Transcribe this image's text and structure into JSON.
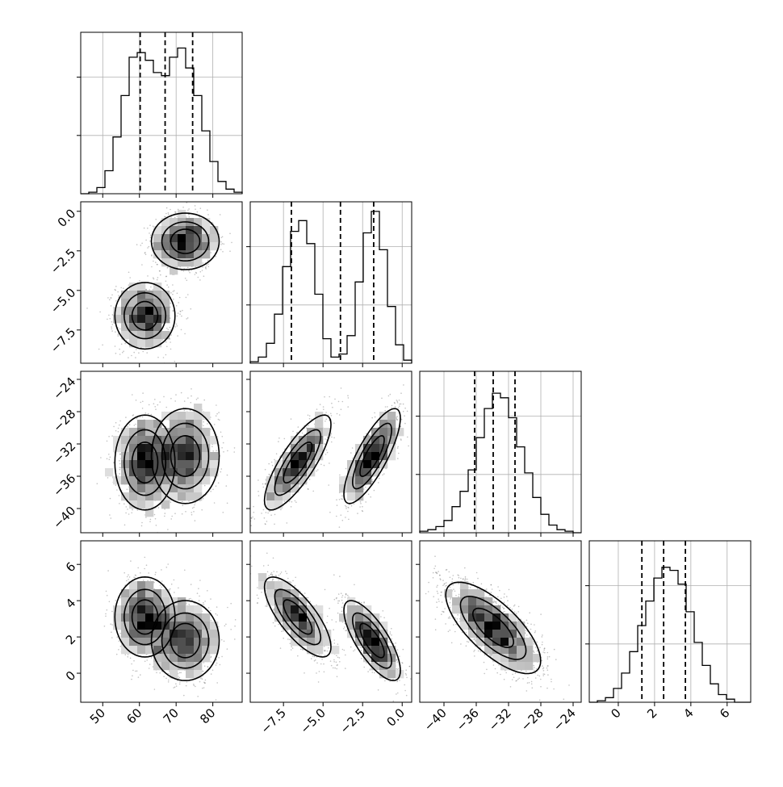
{
  "chart_data": {
    "type": "corner",
    "grid": true,
    "variables": [
      {
        "range": [
          44,
          88
        ],
        "ticks": [
          50,
          60,
          70,
          80
        ],
        "tick_labels": [
          "50",
          "60",
          "70",
          "80"
        ],
        "quantiles": [
          60.2,
          67.0,
          74.5
        ]
      },
      {
        "range": [
          -9.6,
          0.6
        ],
        "ticks": [
          -7.5,
          -5.0,
          -2.5,
          0.0
        ],
        "tick_labels": [
          "−7.5",
          "−5.0",
          "−2.5",
          "0.0"
        ],
        "quantiles": [
          -7.0,
          -3.9,
          -1.8
        ]
      },
      {
        "range": [
          -43,
          -23
        ],
        "ticks": [
          -40,
          -36,
          -32,
          -28,
          -24
        ],
        "tick_labels": [
          "−40",
          "−36",
          "−32",
          "−28",
          "−24"
        ],
        "quantiles": [
          -36.2,
          -33.9,
          -31.2
        ]
      },
      {
        "range": [
          -1.6,
          7.3
        ],
        "ticks": [
          0,
          2,
          4,
          6
        ],
        "tick_labels": [
          "0",
          "2",
          "4",
          "6"
        ],
        "quantiles": [
          1.3,
          2.5,
          3.7
        ]
      }
    ],
    "histograms": [
      {
        "counts": [
          0,
          0.01,
          0.04,
          0.15,
          0.37,
          0.64,
          0.89,
          0.92,
          0.87,
          0.79,
          0.77,
          0.89,
          0.95,
          0.82,
          0.64,
          0.41,
          0.21,
          0.08,
          0.03,
          0.01
        ]
      },
      {
        "counts": [
          0.01,
          0.04,
          0.13,
          0.32,
          0.63,
          0.86,
          0.93,
          0.78,
          0.45,
          0.16,
          0.04,
          0.06,
          0.18,
          0.53,
          0.85,
          0.99,
          0.74,
          0.37,
          0.12,
          0.02
        ]
      },
      {
        "counts": [
          0.01,
          0.02,
          0.04,
          0.08,
          0.17,
          0.27,
          0.41,
          0.62,
          0.81,
          0.91,
          0.88,
          0.75,
          0.56,
          0.39,
          0.23,
          0.12,
          0.05,
          0.02,
          0.01,
          0
        ]
      },
      {
        "counts": [
          0,
          0.01,
          0.03,
          0.09,
          0.19,
          0.33,
          0.5,
          0.66,
          0.81,
          0.88,
          0.86,
          0.77,
          0.59,
          0.39,
          0.24,
          0.12,
          0.05,
          0.02,
          0,
          0
        ]
      }
    ],
    "pairs": [
      {
        "x_var": 0,
        "y_var": 1,
        "components": [
          {
            "mean": [
              72.5,
              -1.9
            ],
            "sd": [
              4.4,
              0.85
            ],
            "rho": 0
          },
          {
            "mean": [
              61.5,
              -6.6
            ],
            "sd": [
              3.9,
              1.0
            ],
            "rho": 0
          }
        ]
      },
      {
        "x_var": 0,
        "y_var": 2,
        "components": [
          {
            "mean": [
              61.5,
              -34.3
            ],
            "sd": [
              3.9,
              2.8
            ],
            "rho": 0
          },
          {
            "mean": [
              72.5,
              -33.5
            ],
            "sd": [
              4.4,
              2.8
            ],
            "rho": 0
          }
        ]
      },
      {
        "x_var": 1,
        "y_var": 2,
        "components": [
          {
            "mean": [
              -6.6,
              -34.3
            ],
            "sd": [
              1.0,
              2.8
            ],
            "rho": 0.8
          },
          {
            "mean": [
              -1.9,
              -33.5
            ],
            "sd": [
              0.85,
              2.8
            ],
            "rho": 0.8
          }
        ]
      },
      {
        "x_var": 0,
        "y_var": 3,
        "components": [
          {
            "mean": [
              61.5,
              3.1
            ],
            "sd": [
              3.9,
              1.05
            ],
            "rho": 0
          },
          {
            "mean": [
              72.5,
              1.8
            ],
            "sd": [
              4.4,
              1.05
            ],
            "rho": 0
          }
        ]
      },
      {
        "x_var": 1,
        "y_var": 3,
        "components": [
          {
            "mean": [
              -6.6,
              3.1
            ],
            "sd": [
              1.0,
              1.05
            ],
            "rho": -0.75
          },
          {
            "mean": [
              -1.9,
              1.8
            ],
            "sd": [
              0.85,
              1.05
            ],
            "rho": -0.75
          }
        ]
      },
      {
        "x_var": 2,
        "y_var": 3,
        "components": [
          {
            "mean": [
              -33.9,
              2.5
            ],
            "sd": [
              2.8,
              1.2
            ],
            "rho": -0.72
          }
        ]
      }
    ]
  }
}
